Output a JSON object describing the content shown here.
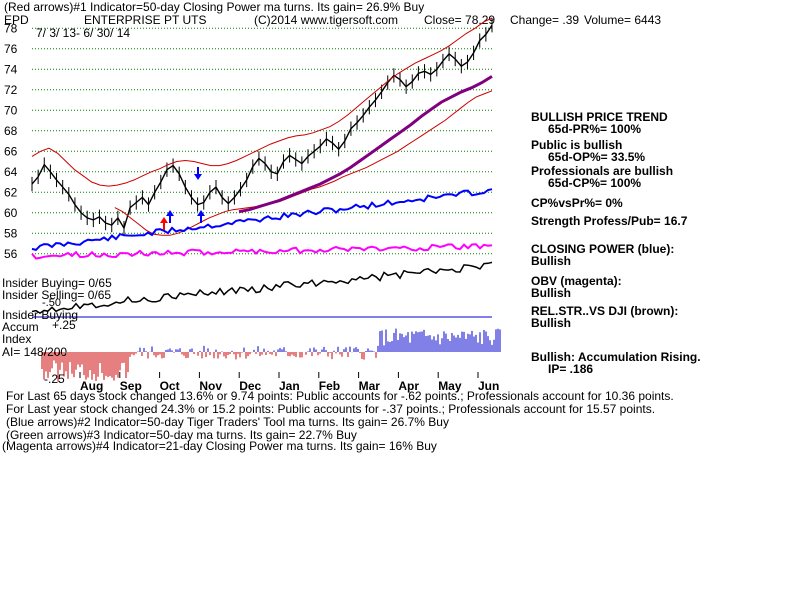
{
  "header": {
    "line1": "(Red arrows)#1 Indicator=50-day Closing Power ma turns. Its gain= 26.9% Buy",
    "symbol": "EPD",
    "name": "ENTERPRISE PT UTS",
    "copyright": "(C)2014 www.tigersoft.com",
    "close": "Close= 78.29",
    "change": "Change= .39",
    "volume": "Volume= 6443",
    "date_range": "7/ 3/ 13- 6/ 30/ 14"
  },
  "left_labels": {
    "insider_buying": "Insider Buying= 0/65",
    "insider_selling": "Insider Selling= 0/65",
    "insider_buying2": "Insider Buying",
    "accum": "Accum",
    "accum_val": "+.25",
    "index": "Index",
    "ai": "AI= 148/200",
    "neg50": "-.50",
    "neg25": "-.25"
  },
  "side_panel": {
    "bullish_trend": "BULLISH PRICE TREND",
    "pr": "65d-PR%= 100%",
    "public_bullish": "Public is bullish",
    "op": "65d-OP%= 33.5%",
    "pros_bullish": "Professionals are bullish",
    "cp": "65d-CP%= 100%",
    "cpvspr": "CP%vsPr%= 0%",
    "strength": "Strength Profess/Pub= 16.7",
    "closing_power": "CLOSING POWER (blue):",
    "cp_status": "Bullish",
    "obv": "OBV (magenta):",
    "obv_status": "Bullish",
    "relstr": "REL.STR..VS DJI (brown):",
    "relstr_status": "Bullish",
    "accum_rising": "Bullish: Accumulation Rising.",
    "ip": "IP= .186"
  },
  "footer": [
    "For Last 65 days stock changed 13.6% or 9.74 points: Public accounts for -.62 points.; Professionals account for 10.36 points.",
    "For Last year stock changed 24.3% or 15.2 points: Public accounts for -.37 points.; Professionals account for 15.57 points.",
    "(Blue arrows)#2 Indicator=50-day Tiger Traders' Tool ma turns. Its gain= 26.7% Buy",
    "(Green arrows)#3 Indicator=50-day ma turns. Its gain= 22.7% Buy",
    "(Magenta arrows)#4 Indicator=21-day Closing Power ma turns. Its gain= 16% Buy"
  ],
  "colors": {
    "price": "#000000",
    "band": "#cc0000",
    "ma": "#800080",
    "closing_power": "#0000ff",
    "obv": "#ff00ff",
    "relstr": "#000000",
    "grid": "#008000",
    "accum_pos": "#0000cc",
    "accum_neg": "#cc0000",
    "arrow_red": "#ff0000",
    "arrow_blue": "#0000ff"
  },
  "chart_data": {
    "type": "line",
    "y_ticks": [
      "78",
      "76",
      "74",
      "72",
      "70",
      "68",
      "66",
      "64",
      "62",
      "60",
      "58",
      "56"
    ],
    "ylim": [
      55,
      79
    ],
    "x_ticks": [
      "Aug",
      "Sep",
      "Oct",
      "Nov",
      "Dec",
      "Jan",
      "Feb",
      "Mar",
      "Apr",
      "May",
      "Jun"
    ],
    "series": [
      {
        "key": "price",
        "values": [
          62.8,
          63.5,
          64.7,
          64.0,
          63.2,
          62.5,
          61.8,
          60.8,
          60.0,
          59.5,
          59.3,
          59.6,
          59.0,
          58.8,
          59.5,
          58.5,
          60.5,
          61.0,
          61.5,
          60.8,
          62.0,
          63.0,
          64.2,
          64.6,
          63.8,
          62.5,
          61.5,
          60.8,
          61.0,
          62.0,
          62.5,
          61.5,
          60.9,
          61.5,
          62.3,
          63.2,
          64.5,
          65.3,
          64.8,
          64.0,
          63.8,
          65.0,
          65.6,
          65.2,
          64.8,
          65.5,
          66.0,
          66.5,
          67.2,
          66.8,
          66.2,
          67.0,
          68.2,
          68.8,
          69.5,
          70.3,
          71.0,
          71.8,
          72.7,
          73.4,
          73.0,
          72.3,
          72.8,
          73.6,
          73.8,
          73.5,
          74.0,
          74.8,
          75.5,
          75.0,
          74.3,
          74.7,
          75.6,
          76.8,
          77.4,
          78.3
        ]
      },
      {
        "key": "upper_band",
        "values": [
          65.5,
          66.0,
          66.3,
          65.8,
          65.0,
          64.2,
          63.6,
          63.0,
          62.7,
          62.6,
          62.7,
          62.9,
          63.2,
          63.6,
          64.0,
          64.3,
          64.7,
          65.0,
          65.1,
          65.0,
          64.8,
          64.6,
          64.6,
          64.8,
          65.1,
          65.5,
          65.9,
          66.3,
          66.7,
          67.0,
          67.3,
          67.5,
          67.6,
          67.8,
          68.1,
          68.4,
          68.9,
          69.5,
          70.2,
          70.9,
          71.6,
          72.3,
          73.0,
          73.6,
          74.1,
          74.6,
          75.0,
          75.4,
          75.8,
          76.3,
          76.9,
          77.5,
          78.0,
          78.6,
          79.0
        ]
      },
      {
        "key": "lower_band",
        "values": [
          60.5,
          60.1,
          59.5,
          58.9,
          58.3,
          57.9,
          57.8,
          57.8,
          58.0,
          58.3,
          58.7,
          59.1,
          59.5,
          59.8,
          60.1,
          60.3,
          60.4,
          60.5,
          60.6,
          60.7,
          60.9,
          61.1,
          61.4,
          61.7,
          62.0,
          62.3,
          62.5,
          62.8,
          63.1,
          63.5,
          63.8,
          64.1,
          64.4,
          64.8,
          65.2,
          65.6,
          66.0,
          66.5,
          67.0,
          67.5,
          68.0,
          68.5,
          69.0,
          69.6,
          70.2,
          70.8,
          71.3,
          71.6,
          71.9
        ]
      },
      {
        "key": "ma50",
        "values": [
          60.1,
          60.3,
          60.6,
          60.9,
          61.2,
          61.6,
          62.0,
          62.4,
          62.8,
          63.3,
          63.8,
          64.4,
          65.1,
          65.8,
          66.5,
          67.2,
          67.9,
          68.6,
          69.4,
          70.1,
          70.8,
          71.3,
          71.8,
          72.2,
          72.7,
          73.3
        ]
      }
    ]
  }
}
